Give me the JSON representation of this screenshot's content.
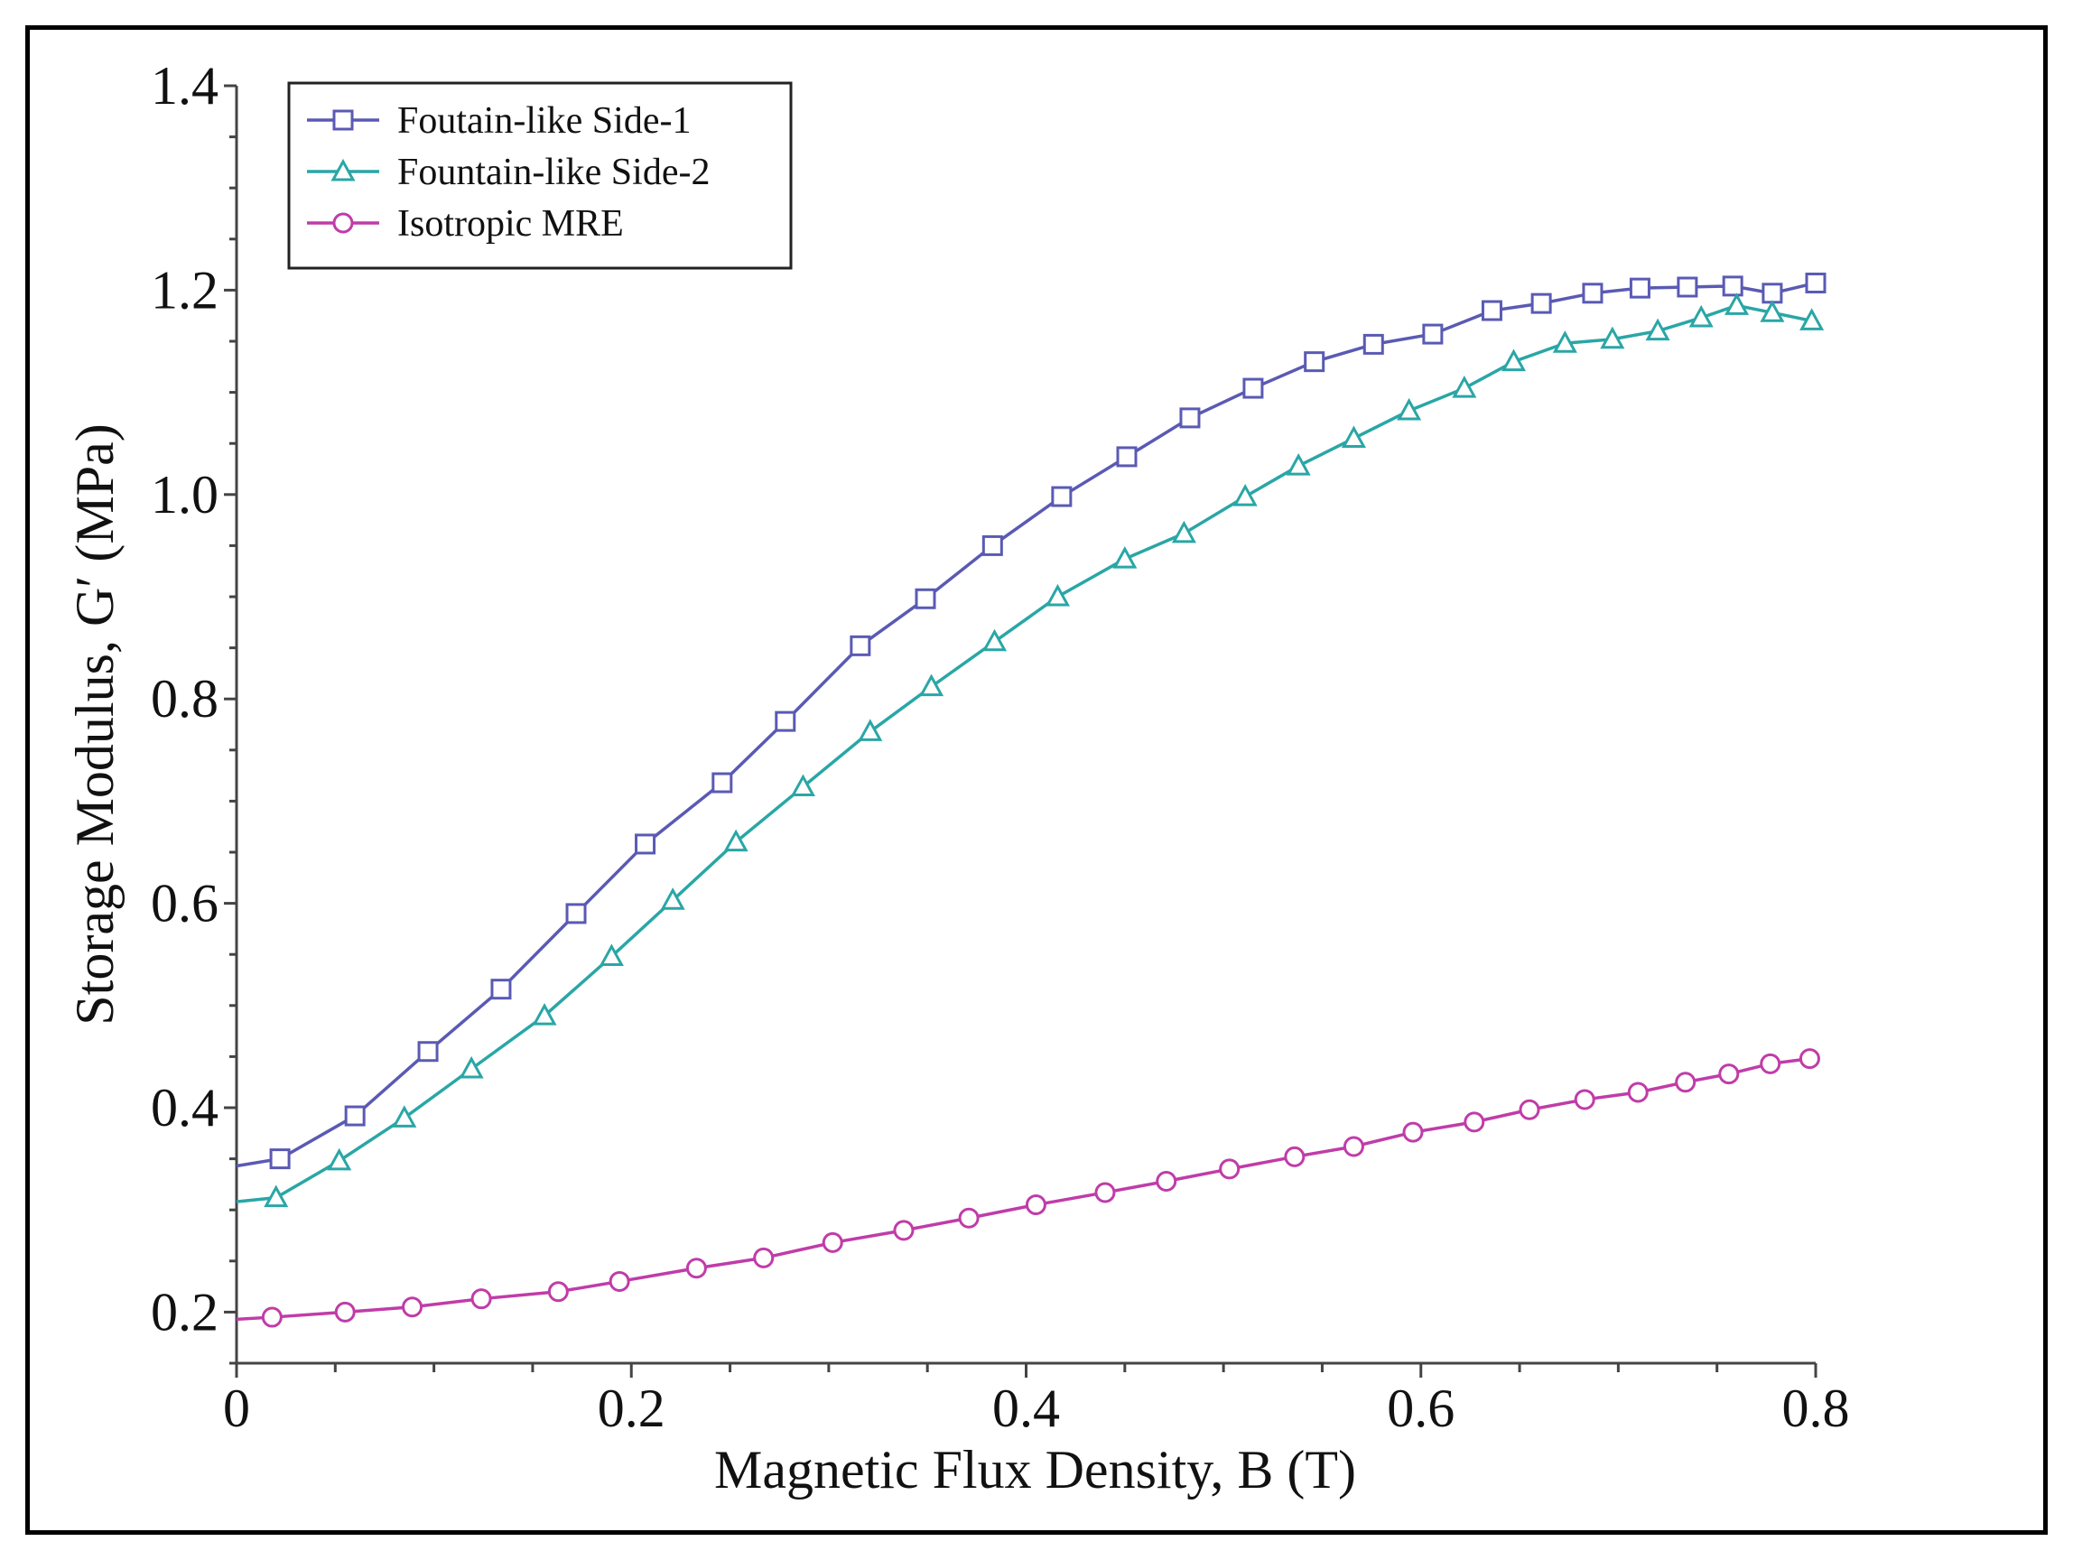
{
  "chart_data": {
    "type": "line",
    "title": "",
    "xlabel": "Magnetic Flux Density, B (T)",
    "ylabel": "Storage Modulus, G′ (MPa)",
    "xlim": [
      0,
      0.8
    ],
    "ylim": [
      0.15,
      1.4
    ],
    "x_ticks": [
      "0",
      "0.2",
      "0.4",
      "0.6",
      "0.8"
    ],
    "y_ticks": [
      "0.2",
      "0.4",
      "0.6",
      "0.8",
      "1.0",
      "1.2",
      "1.4"
    ],
    "legend_position": "top-left",
    "grid": false,
    "series": [
      {
        "name": "Foutain-like Side-1",
        "marker": "square",
        "color": "#5a5ab4",
        "x": [
          0,
          0.022,
          0.06,
          0.097,
          0.134,
          0.172,
          0.207,
          0.246,
          0.278,
          0.316,
          0.349,
          0.383,
          0.418,
          0.451,
          0.483,
          0.515,
          0.546,
          0.576,
          0.606,
          0.636,
          0.661,
          0.687,
          0.711,
          0.735,
          0.758,
          0.778,
          0.8
        ],
        "values": [
          0.343,
          0.35,
          0.392,
          0.455,
          0.516,
          0.59,
          0.658,
          0.718,
          0.778,
          0.852,
          0.898,
          0.95,
          0.998,
          1.037,
          1.075,
          1.104,
          1.13,
          1.147,
          1.157,
          1.18,
          1.187,
          1.197,
          1.202,
          1.203,
          1.204,
          1.197,
          1.207
        ]
      },
      {
        "name": "Fountain-like Side-2",
        "marker": "triangle",
        "color": "#2aa6a6",
        "x": [
          0,
          0.02,
          0.052,
          0.085,
          0.119,
          0.156,
          0.19,
          0.221,
          0.253,
          0.287,
          0.321,
          0.352,
          0.384,
          0.416,
          0.45,
          0.48,
          0.511,
          0.538,
          0.566,
          0.594,
          0.622,
          0.647,
          0.673,
          0.697,
          0.72,
          0.742,
          0.76,
          0.778,
          0.798
        ],
        "values": [
          0.308,
          0.312,
          0.348,
          0.39,
          0.438,
          0.49,
          0.548,
          0.603,
          0.66,
          0.714,
          0.768,
          0.812,
          0.856,
          0.9,
          0.937,
          0.962,
          0.998,
          1.028,
          1.055,
          1.082,
          1.104,
          1.13,
          1.148,
          1.152,
          1.16,
          1.173,
          1.185,
          1.178,
          1.17
        ]
      },
      {
        "name": "Isotropic MRE",
        "marker": "circle",
        "color": "#c03ca8",
        "x": [
          0,
          0.018,
          0.055,
          0.089,
          0.124,
          0.163,
          0.194,
          0.233,
          0.267,
          0.302,
          0.338,
          0.371,
          0.405,
          0.44,
          0.471,
          0.503,
          0.536,
          0.566,
          0.596,
          0.627,
          0.655,
          0.683,
          0.71,
          0.734,
          0.756,
          0.777,
          0.797
        ],
        "values": [
          0.193,
          0.195,
          0.2,
          0.205,
          0.213,
          0.22,
          0.23,
          0.243,
          0.253,
          0.268,
          0.28,
          0.292,
          0.305,
          0.317,
          0.328,
          0.34,
          0.352,
          0.362,
          0.376,
          0.386,
          0.398,
          0.408,
          0.415,
          0.425,
          0.433,
          0.443,
          0.448
        ]
      }
    ]
  }
}
